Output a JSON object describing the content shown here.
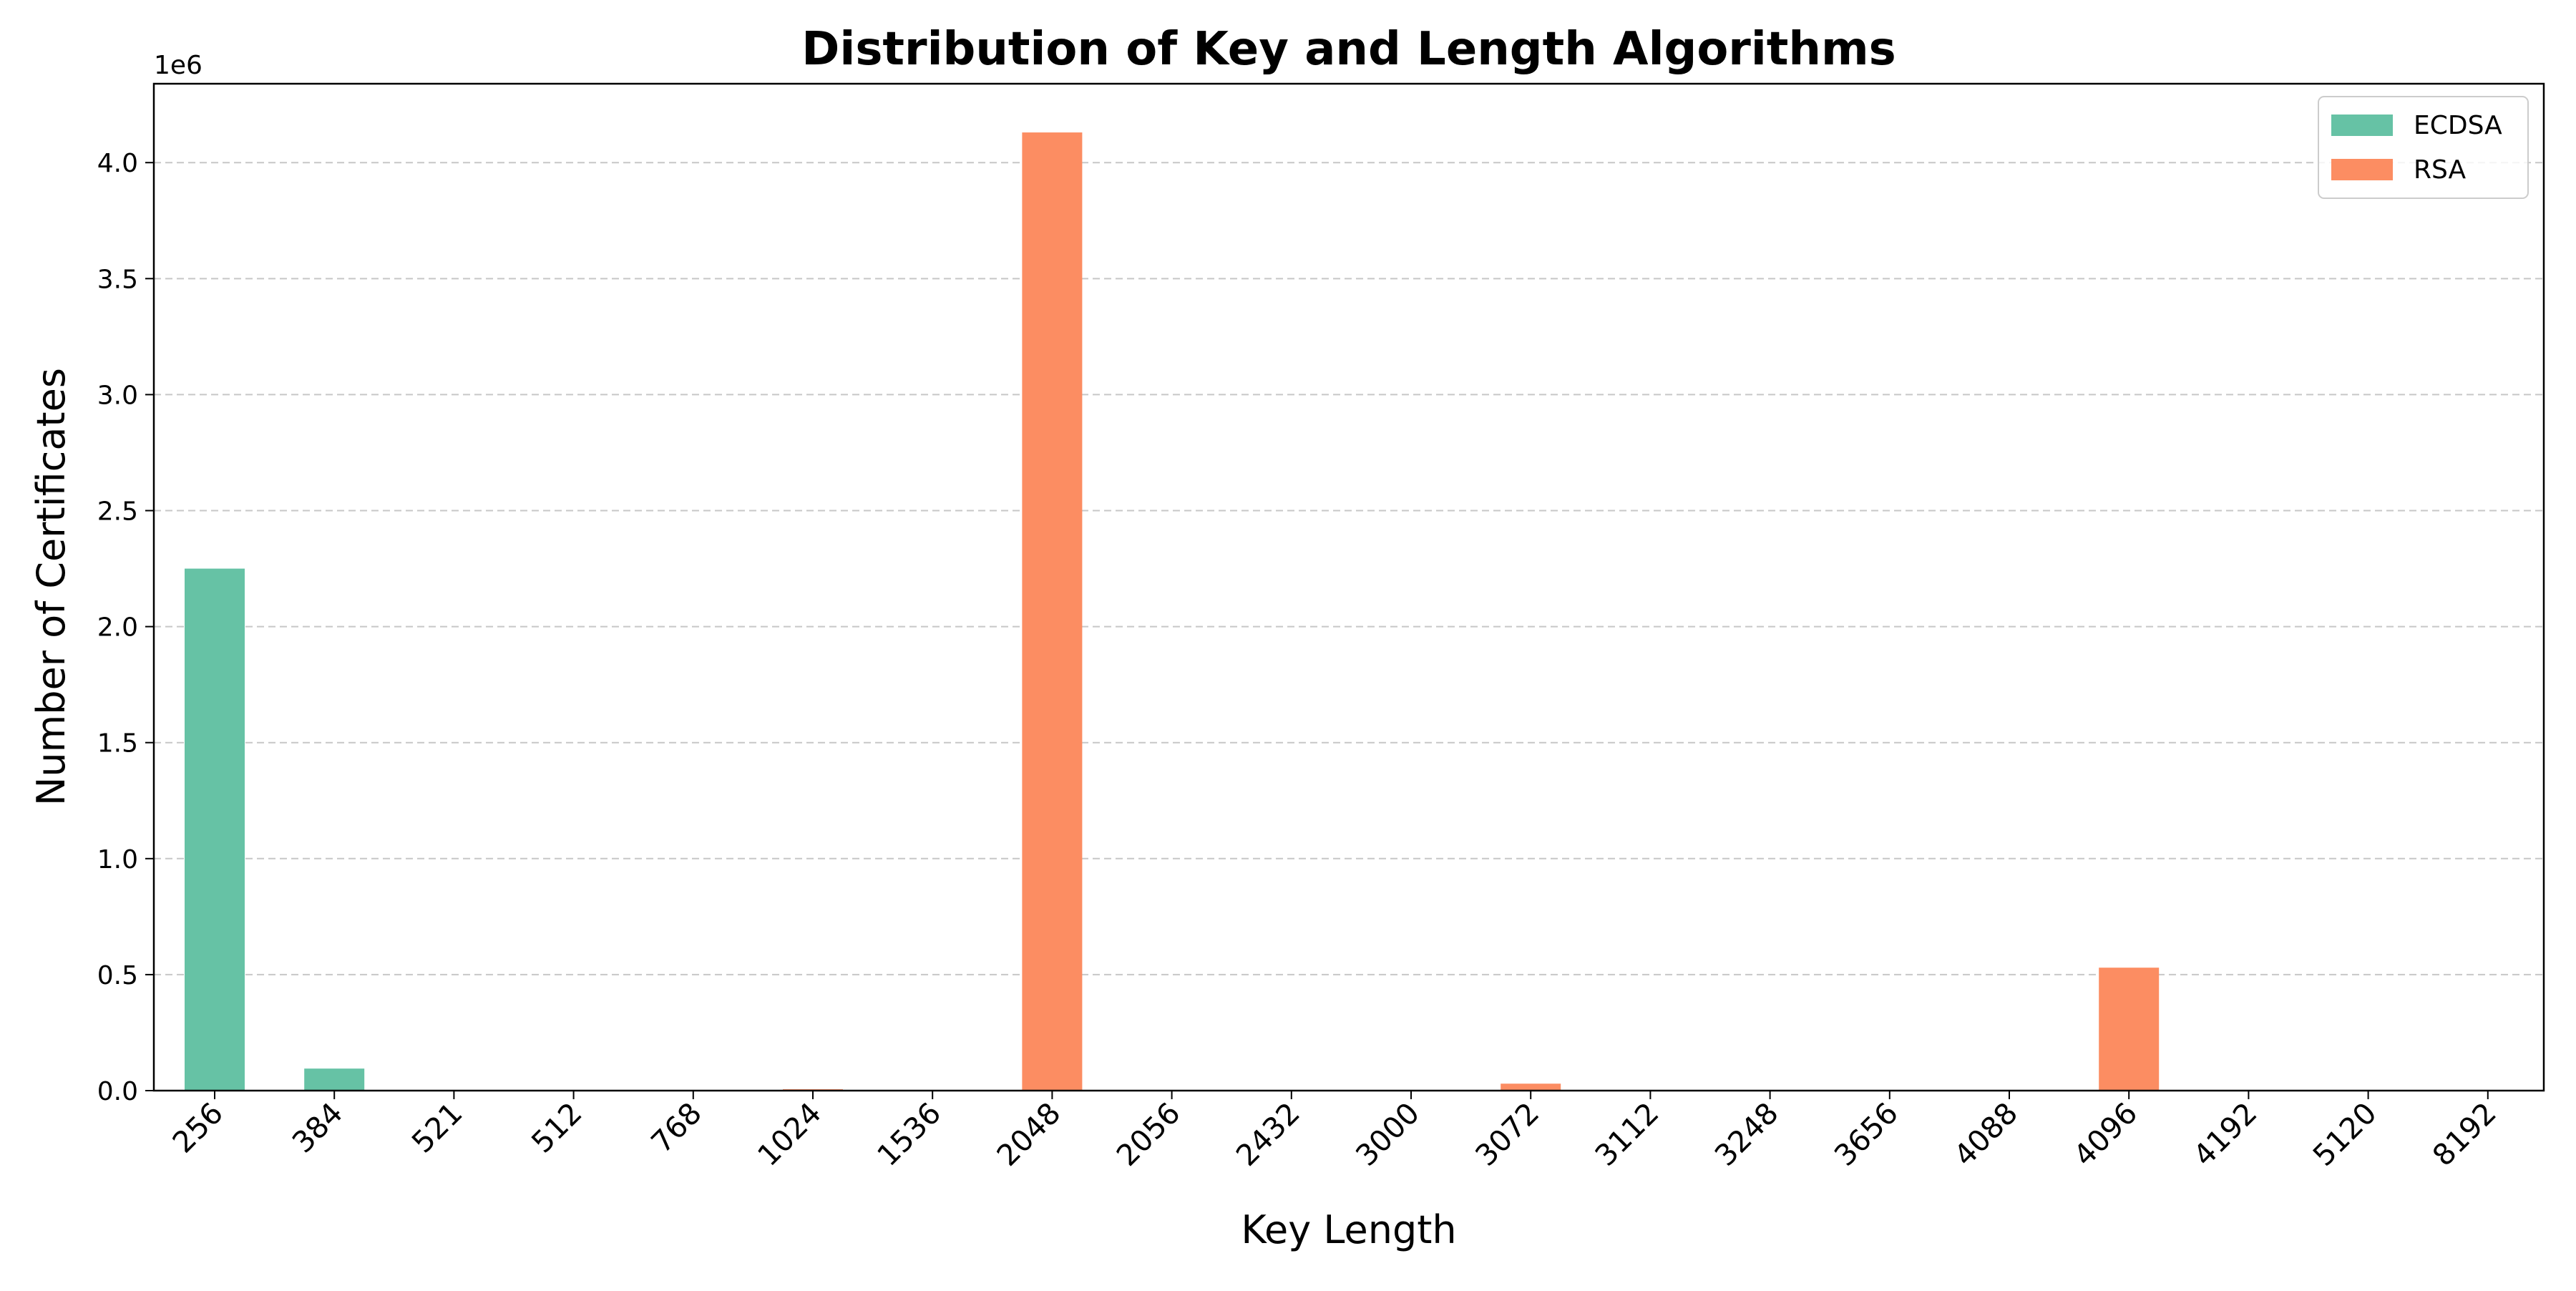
{
  "chart_data": {
    "type": "bar",
    "title": "Distribution of Key and Length Algorithms",
    "xlabel": "Key Length",
    "ylabel": "Number of Certificates",
    "y_offset_label": "1e6",
    "categories": [
      "256",
      "384",
      "521",
      "512",
      "768",
      "1024",
      "1536",
      "2048",
      "2056",
      "2432",
      "3000",
      "3072",
      "3112",
      "3248",
      "3656",
      "4088",
      "4096",
      "4192",
      "5120",
      "8192"
    ],
    "series": [
      {
        "name": "ECDSA",
        "color": "#66c2a5",
        "values": [
          2250000,
          95000,
          1500,
          0,
          0,
          0,
          0,
          0,
          0,
          0,
          0,
          0,
          0,
          0,
          0,
          0,
          0,
          0,
          0,
          0
        ]
      },
      {
        "name": "RSA",
        "color": "#fc8d62",
        "values": [
          0,
          0,
          0,
          300,
          200,
          6000,
          100,
          4130000,
          50,
          50,
          50,
          30000,
          50,
          50,
          50,
          100,
          530000,
          50,
          100,
          1500
        ]
      }
    ],
    "ylim": [
      0,
      4340000
    ],
    "yticks": [
      0,
      500000,
      1000000,
      1500000,
      2000000,
      2500000,
      3000000,
      3500000,
      4000000
    ],
    "ytick_labels": [
      "0.0",
      "0.5",
      "1.0",
      "1.5",
      "2.0",
      "2.5",
      "3.0",
      "3.5",
      "4.0"
    ],
    "grid": "y-dashed",
    "legend_position": "top-right"
  }
}
